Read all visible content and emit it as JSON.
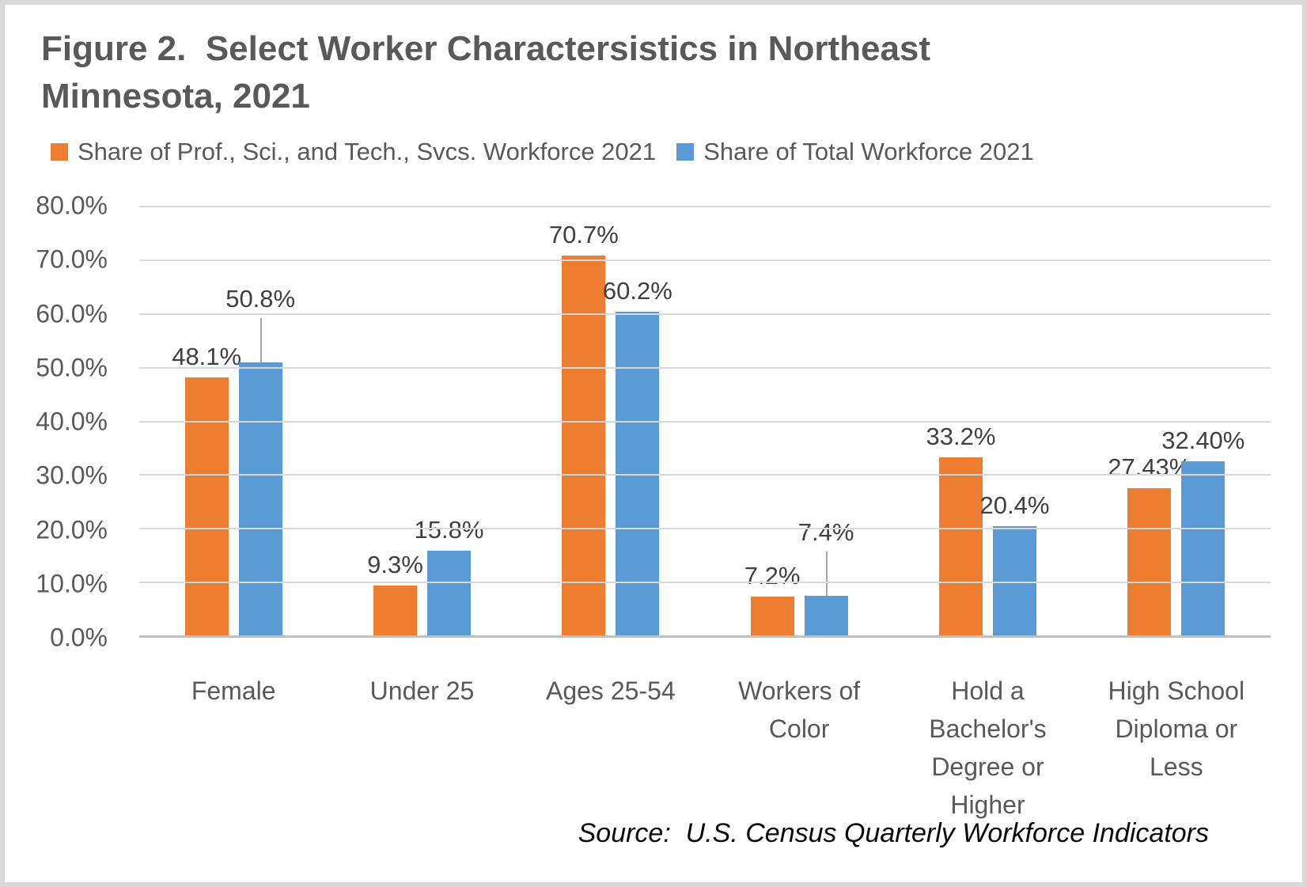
{
  "figure": {
    "title": "Figure 2.  Select Worker Charactersistics in Northeast Minnesota, 2021",
    "source": "Source:  U.S. Census Quarterly Workforce Indicators"
  },
  "chart_data": {
    "type": "bar",
    "title": "Figure 2.  Select Worker Charactersistics in Northeast Minnesota, 2021",
    "xlabel": "",
    "ylabel": "",
    "ylim": [
      0,
      80
    ],
    "ytick_step": 10,
    "yticks": [
      "80.0%",
      "70.0%",
      "60.0%",
      "50.0%",
      "40.0%",
      "30.0%",
      "20.0%",
      "10.0%",
      "0.0%"
    ],
    "grid": true,
    "legend_position": "top",
    "categories": [
      "Female",
      "Under 25",
      "Ages 25-54",
      "Workers of Color",
      "Hold a Bachelor's Degree or Higher",
      "High School Diploma or Less"
    ],
    "series": [
      {
        "key": "prof-sci-tech",
        "name": "Share of Prof., Sci., and Tech., Svcs. Workforce 2021",
        "color": "#ED7D31",
        "values": [
          48.1,
          9.3,
          70.7,
          7.2,
          33.2,
          27.43
        ],
        "labels": [
          "48.1%",
          "9.3%",
          "70.7%",
          "7.2%",
          "33.2%",
          "27.43%"
        ],
        "leader_lines": [
          false,
          false,
          false,
          false,
          false,
          false
        ]
      },
      {
        "key": "total-workforce",
        "name": "Share of Total Workforce 2021",
        "color": "#5B9BD5",
        "values": [
          50.8,
          15.8,
          60.2,
          7.4,
          20.4,
          32.4
        ],
        "labels": [
          "50.8%",
          "15.8%",
          "60.2%",
          "7.4%",
          "20.4%",
          "32.40%"
        ],
        "leader_lines": [
          true,
          false,
          false,
          true,
          false,
          false
        ]
      }
    ],
    "colors": {
      "gridline": "#D9D9D9",
      "axis_line": "#BFBFBF",
      "axis_text": "#595959",
      "data_label_text": "#404040",
      "title_text": "#595959",
      "leader_line": "#A6A6A6",
      "frame_border": "#D9D9D9"
    },
    "source_note": "Source:  U.S. Census Quarterly Workforce Indicators"
  }
}
